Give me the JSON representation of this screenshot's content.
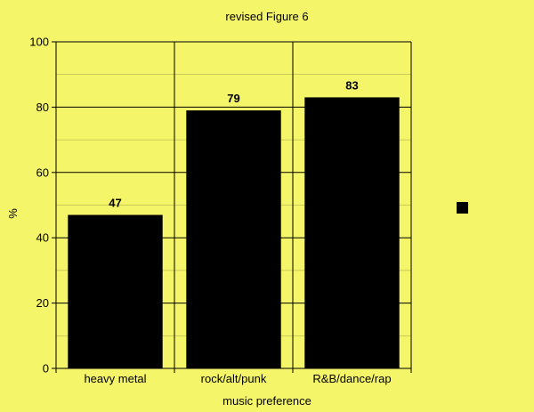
{
  "chart_data": {
    "type": "bar",
    "title": "revised Figure 6",
    "xlabel": "music preference",
    "ylabel": "%",
    "categories": [
      "heavy metal",
      "rock/alt/punk",
      "R&B/dance/rap"
    ],
    "values": [
      47,
      79,
      83
    ],
    "data_labels": [
      "47",
      "79",
      "83"
    ],
    "ylim": [
      0,
      100
    ],
    "y_ticks": [
      0,
      20,
      40,
      60,
      80,
      100
    ],
    "y_tick_labels": [
      "0",
      "20",
      "40",
      "60",
      "80",
      "100"
    ],
    "grid": true,
    "legend": "right",
    "colors": {
      "background": "#f5f56a",
      "bar": "#000000",
      "grid": "#000000",
      "text": "#000000"
    }
  }
}
